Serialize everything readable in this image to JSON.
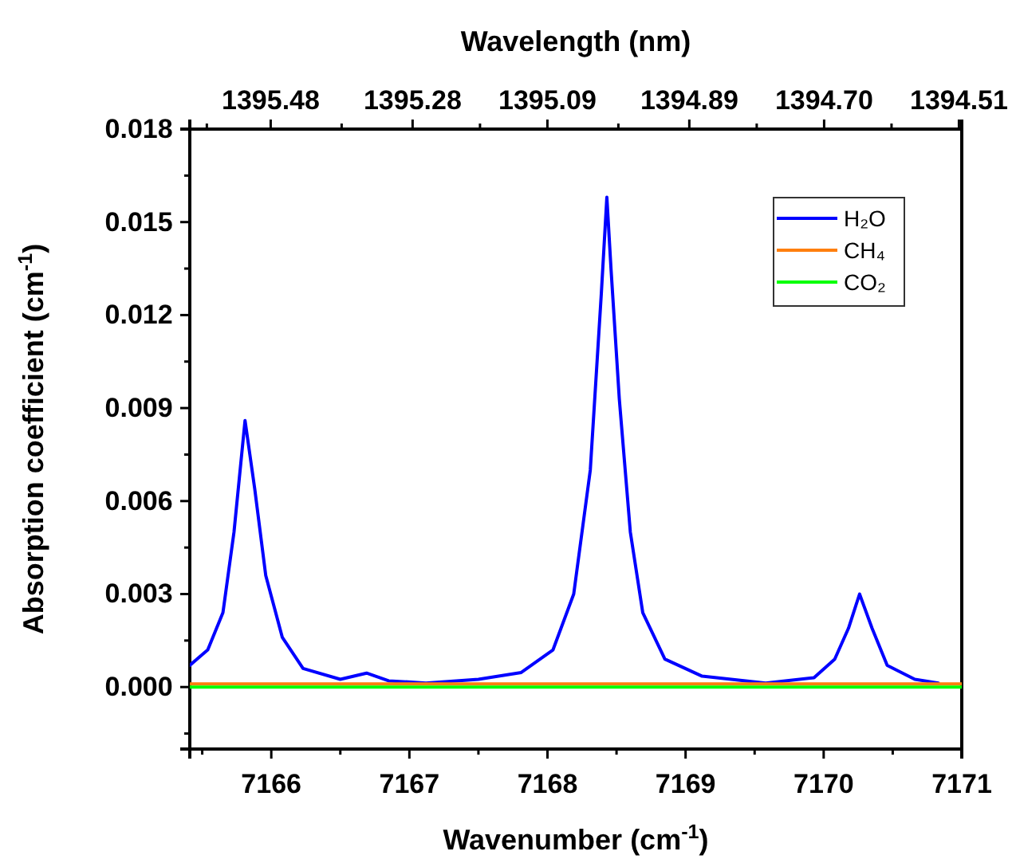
{
  "chart_data": {
    "type": "line",
    "xlabel": "Wavenumber (cm$^{-1}$)",
    "ylabel": "Absorption coefficient (cm$^{-1}$)",
    "x2label": "Wavelength (nm)",
    "xlim": [
      7165.41,
      7171
    ],
    "ylim": [
      -0.002,
      0.018
    ],
    "x2lim": [
      1395.594,
      1394.506
    ],
    "xticks": [
      {
        "value": 7165.5,
        "label": null
      },
      7166,
      {
        "value": 7166.5,
        "label": null
      },
      7167,
      {
        "value": 7167.5,
        "label": null
      },
      7168,
      {
        "value": 7168.5,
        "label": null
      },
      7169,
      {
        "value": 7169.5,
        "label": null
      },
      7170,
      {
        "value": 7170.5,
        "label": null
      },
      7171
    ],
    "x2ticks": [
      {
        "value": 1395.57,
        "label": null
      },
      1395.48,
      {
        "value": 1395.38,
        "label": null
      },
      1395.28,
      {
        "value": 1395.185,
        "label": null
      },
      1395.09,
      {
        "value": 1394.99,
        "label": null
      },
      1394.89,
      {
        "value": 1394.795,
        "label": null
      },
      {
        "value": 1394.7,
        "label": "1394.70"
      },
      {
        "value": 1394.605,
        "label": null
      },
      1394.51
    ],
    "yticks": [
      {
        "value": -0.0015,
        "label": null
      },
      {
        "value": 0,
        "label": "0.000"
      },
      {
        "value": 0.0015,
        "label": null
      },
      0.003,
      {
        "value": 0.0045,
        "label": null
      },
      0.006,
      {
        "value": 0.0075,
        "label": null
      },
      0.009,
      {
        "value": 0.0105,
        "label": null
      },
      0.012,
      {
        "value": 0.0135,
        "label": null
      },
      0.015,
      {
        "value": 0.0165,
        "label": null
      },
      0.018
    ],
    "legend": "top right",
    "grid": false,
    "line_style": "solid",
    "marker": "none",
    "series": [
      {
        "name": "H₂O",
        "color": "#0000ff",
        "x": [
          7165.41,
          7165.54,
          7165.65,
          7165.73,
          7165.81,
          7165.88,
          7165.96,
          7166.08,
          7166.23,
          7166.5,
          7166.69,
          7166.85,
          7167.12,
          7167.5,
          7167.81,
          7168.04,
          7168.19,
          7168.31,
          7168.39,
          7168.43,
          7168.46,
          7168.52,
          7168.6,
          7168.69,
          7168.85,
          7169.12,
          7169.58,
          7169.93,
          7170.08,
          7170.18,
          7170.26,
          7170.35,
          7170.46,
          7170.66,
          7170.83
        ],
        "values": [
          0.0007,
          0.0012,
          0.0024,
          0.005,
          0.0086,
          0.0064,
          0.0036,
          0.0016,
          0.0006,
          0.00025,
          0.00045,
          0.0002,
          0.00013,
          0.00025,
          0.00047,
          0.0012,
          0.003,
          0.007,
          0.0127,
          0.0158,
          0.0135,
          0.0093,
          0.005,
          0.0024,
          0.0009,
          0.00035,
          0.00013,
          0.0003,
          0.0009,
          0.0019,
          0.003,
          0.0019,
          0.0007,
          0.00025,
          0.00013
        ]
      },
      {
        "name": "CH₄",
        "color": "#ff7f0e",
        "x": [
          7165.41,
          7171
        ],
        "values": [
          0.0001,
          0.0001
        ]
      },
      {
        "name": "CO₂",
        "color": "#00ff00",
        "x": [
          7165.41,
          7171
        ],
        "values": [
          0,
          0
        ]
      }
    ]
  }
}
